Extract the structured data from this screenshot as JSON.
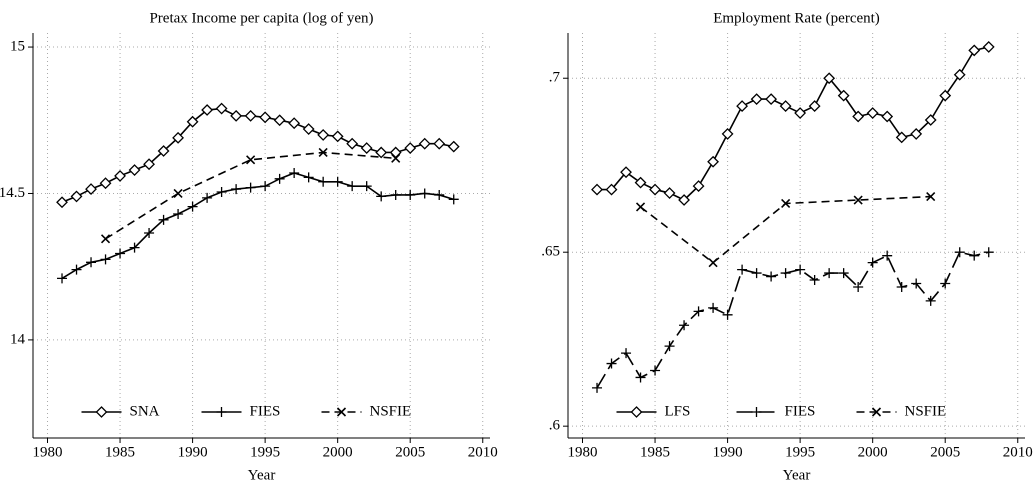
{
  "chart_data": [
    {
      "type": "line",
      "title": "Pretax Income per capita (log of yen)",
      "x_label": "Year",
      "xlim": [
        1979,
        2010.5
      ],
      "xticks": [
        1980,
        1985,
        1990,
        1995,
        2000,
        2005,
        2010
      ],
      "ylim": [
        13.665,
        15.048
      ],
      "yticks": [
        14,
        14.5,
        15
      ],
      "grid": true,
      "legend": "bottom",
      "series": [
        {
          "name": "SNA",
          "color": "#000000",
          "marker": "diamond",
          "dash": "solid",
          "x": [
            1981,
            1982,
            1983,
            1984,
            1985,
            1986,
            1987,
            1988,
            1989,
            1990,
            1991,
            1992,
            1993,
            1994,
            1995,
            1996,
            1997,
            1998,
            1999,
            2000,
            2001,
            2002,
            2003,
            2004,
            2005,
            2006,
            2007,
            2008
          ],
          "values": [
            14.47,
            14.49,
            14.515,
            14.535,
            14.56,
            14.58,
            14.6,
            14.645,
            14.69,
            14.745,
            14.785,
            14.79,
            14.765,
            14.765,
            14.76,
            14.75,
            14.74,
            14.72,
            14.7,
            14.695,
            14.67,
            14.655,
            14.64,
            14.64,
            14.655,
            14.67,
            14.67,
            14.66
          ]
        },
        {
          "name": "FIES",
          "color": "#000000",
          "marker": "plus",
          "dash": "solid",
          "x": [
            1981,
            1982,
            1983,
            1984,
            1985,
            1986,
            1987,
            1988,
            1989,
            1990,
            1991,
            1992,
            1993,
            1994,
            1995,
            1996,
            1997,
            1998,
            1999,
            2000,
            2001,
            2002,
            2003,
            2004,
            2005,
            2006,
            2007,
            2008
          ],
          "values": [
            14.21,
            14.24,
            14.265,
            14.275,
            14.295,
            14.315,
            14.365,
            14.41,
            14.43,
            14.455,
            14.485,
            14.505,
            14.515,
            14.52,
            14.525,
            14.55,
            14.57,
            14.555,
            14.54,
            14.54,
            14.525,
            14.525,
            14.49,
            14.495,
            14.495,
            14.5,
            14.495,
            14.48
          ]
        },
        {
          "name": "NSFIE",
          "color": "#000000",
          "marker": "cross",
          "dash": "dash",
          "x": [
            1984,
            1989,
            1994,
            1999,
            2004
          ],
          "values": [
            14.345,
            14.5,
            14.615,
            14.64,
            14.62
          ]
        }
      ]
    },
    {
      "type": "line",
      "title": "Employment Rate (percent)",
      "x_label": "Year",
      "xlim": [
        1979,
        2010.5
      ],
      "xticks": [
        1980,
        1985,
        1990,
        1995,
        2000,
        2005,
        2010
      ],
      "ylim": [
        0.5966,
        0.713
      ],
      "yticks": [
        {
          "value": 0.6,
          "label": ".6"
        },
        {
          "value": 0.65,
          "label": ".65"
        },
        {
          "value": 0.7,
          "label": ".7"
        }
      ],
      "grid": true,
      "legend": "bottom",
      "series": [
        {
          "name": "LFS",
          "color": "#000000",
          "marker": "diamond",
          "dash": "solid",
          "x": [
            1981,
            1982,
            1983,
            1984,
            1985,
            1986,
            1987,
            1988,
            1989,
            1990,
            1991,
            1992,
            1993,
            1994,
            1995,
            1996,
            1997,
            1998,
            1999,
            2000,
            2001,
            2002,
            2003,
            2004,
            2005,
            2006,
            2007,
            2008
          ],
          "values": [
            0.668,
            0.668,
            0.673,
            0.67,
            0.668,
            0.667,
            0.665,
            0.669,
            0.676,
            0.684,
            0.692,
            0.694,
            0.694,
            0.692,
            0.69,
            0.692,
            0.7,
            0.695,
            0.689,
            0.69,
            0.689,
            0.683,
            0.684,
            0.688,
            0.695,
            0.701,
            0.708,
            0.709
          ]
        },
        {
          "name": "FIES",
          "color": "#000000",
          "marker": "plus",
          "dash": "longdash",
          "x": [
            1981,
            1982,
            1983,
            1984,
            1985,
            1986,
            1987,
            1988,
            1989,
            1990,
            1991,
            1992,
            1993,
            1994,
            1995,
            1996,
            1997,
            1998,
            1999,
            2000,
            2001,
            2002,
            2003,
            2004,
            2005,
            2006,
            2007,
            2008
          ],
          "values": [
            0.611,
            0.618,
            0.621,
            0.614,
            0.616,
            0.623,
            0.629,
            0.633,
            0.634,
            0.632,
            0.645,
            0.644,
            0.643,
            0.644,
            0.645,
            0.642,
            0.644,
            0.644,
            0.64,
            0.647,
            0.649,
            0.64,
            0.641,
            0.636,
            0.641,
            0.65,
            0.649,
            0.65
          ]
        },
        {
          "name": "NSFIE",
          "color": "#000000",
          "marker": "cross",
          "dash": "dash",
          "x": [
            1984,
            1989,
            1994,
            1999,
            2004
          ],
          "values": [
            0.663,
            0.647,
            0.664,
            0.665,
            0.666
          ]
        }
      ]
    }
  ]
}
